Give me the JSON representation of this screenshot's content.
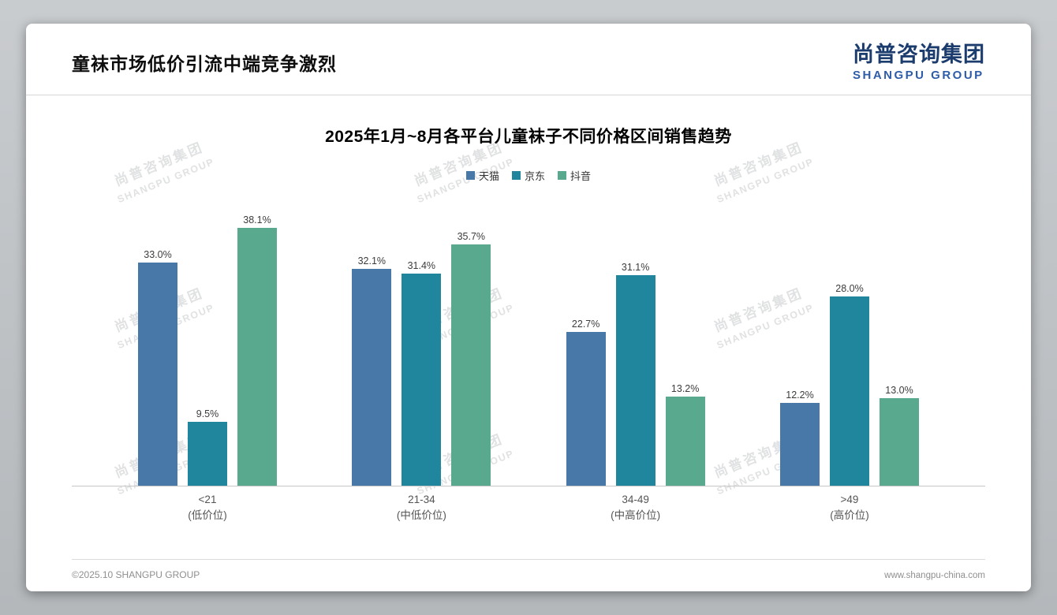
{
  "header": {
    "title": "童袜市场低价引流中端竞争激烈",
    "logo_cn": "尚普咨询集团",
    "logo_en": "SHANGPU GROUP"
  },
  "watermark": {
    "cn": "尚普咨询集团",
    "en": "SHANGPU GROUP"
  },
  "chart_data": {
    "type": "bar",
    "title": "2025年1月~8月各平台儿童袜子不同价格区间销售趋势",
    "categories": [
      {
        "label": "<21",
        "sublabel": "(低价位)"
      },
      {
        "label": "21-34",
        "sublabel": "(中低价位)"
      },
      {
        "label": "34-49",
        "sublabel": "(中高价位)"
      },
      {
        "label": ">49",
        "sublabel": "(高价位)"
      }
    ],
    "series": [
      {
        "id": "tmall",
        "name": "天猫",
        "color": "#4878a8",
        "values": [
          33.0,
          32.1,
          22.7,
          12.2
        ]
      },
      {
        "id": "jd",
        "name": "京东",
        "color": "#1f869e",
        "values": [
          9.5,
          31.4,
          31.1,
          28.0
        ]
      },
      {
        "id": "douyin",
        "name": "抖音",
        "color": "#58a98e",
        "values": [
          38.1,
          35.7,
          13.2,
          13.0
        ]
      }
    ],
    "value_suffix": "%",
    "ylim": [
      0,
      42
    ],
    "legend_position": "top",
    "grid": false
  },
  "footer": {
    "left": "©2025.10 SHANGPU GROUP",
    "right": "www.shangpu-china.com"
  }
}
